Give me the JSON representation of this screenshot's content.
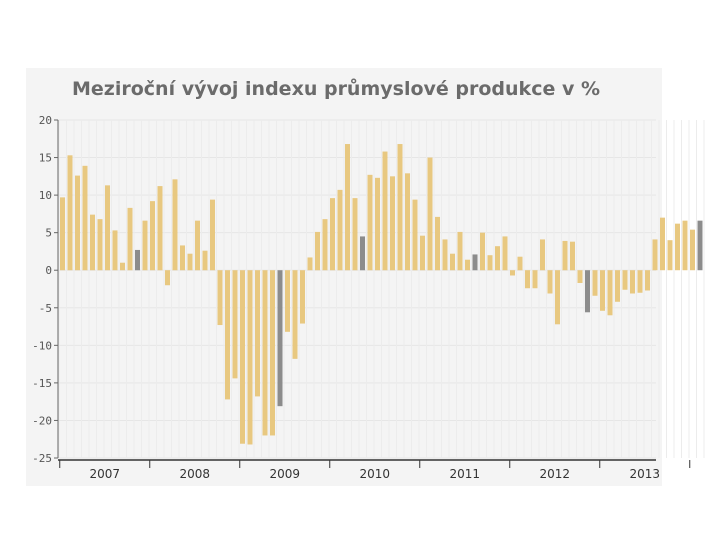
{
  "chart_data": {
    "type": "bar",
    "title": "Meziroční vývoj indexu průmyslové produkce v %",
    "xlabel": "",
    "ylabel": "",
    "ylim": [
      -25,
      20
    ],
    "yticks": [
      20,
      15,
      10,
      5,
      0,
      -5,
      -10,
      -15,
      -20,
      -25
    ],
    "ytick_labels": [
      "20",
      "15",
      "10",
      "5",
      "0",
      "-5",
      "-10",
      "-15",
      "-20",
      "-25"
    ],
    "xtick_labels": [
      "2007",
      "2008",
      "2009",
      "2010",
      "2011",
      "2012",
      "2013"
    ],
    "grid": true,
    "bar_color": "#e8c880",
    "highlight_color": "#8c8c8c",
    "highlight_indices": [
      10,
      29,
      40,
      55,
      70,
      85
    ],
    "values": [
      9.7,
      15.3,
      12.6,
      13.9,
      7.4,
      6.8,
      11.3,
      5.3,
      1.0,
      8.3,
      2.7,
      6.6,
      9.2,
      11.2,
      -2.0,
      12.1,
      3.3,
      2.2,
      6.6,
      2.6,
      9.4,
      -7.3,
      -17.2,
      -14.4,
      -23.1,
      -23.2,
      -16.8,
      -22.0,
      -22.0,
      -18.1,
      -8.2,
      -11.8,
      -7.1,
      1.7,
      5.1,
      6.8,
      9.6,
      10.7,
      16.8,
      9.6,
      4.5,
      12.7,
      12.3,
      15.8,
      12.5,
      16.8,
      12.9,
      9.4,
      4.6,
      15.0,
      7.1,
      4.1,
      2.2,
      5.1,
      1.4,
      2.1,
      5.0,
      2.0,
      3.2,
      4.5,
      -0.7,
      1.8,
      -2.4,
      -2.4,
      4.1,
      -3.1,
      -7.2,
      3.9,
      3.8,
      -1.7,
      -5.6,
      -3.4,
      -5.4,
      -6.0,
      -4.2,
      -2.6,
      -3.1,
      -3.0,
      -2.7,
      4.1,
      7.0,
      4.0,
      6.2,
      6.6,
      5.4,
      6.6
    ]
  }
}
